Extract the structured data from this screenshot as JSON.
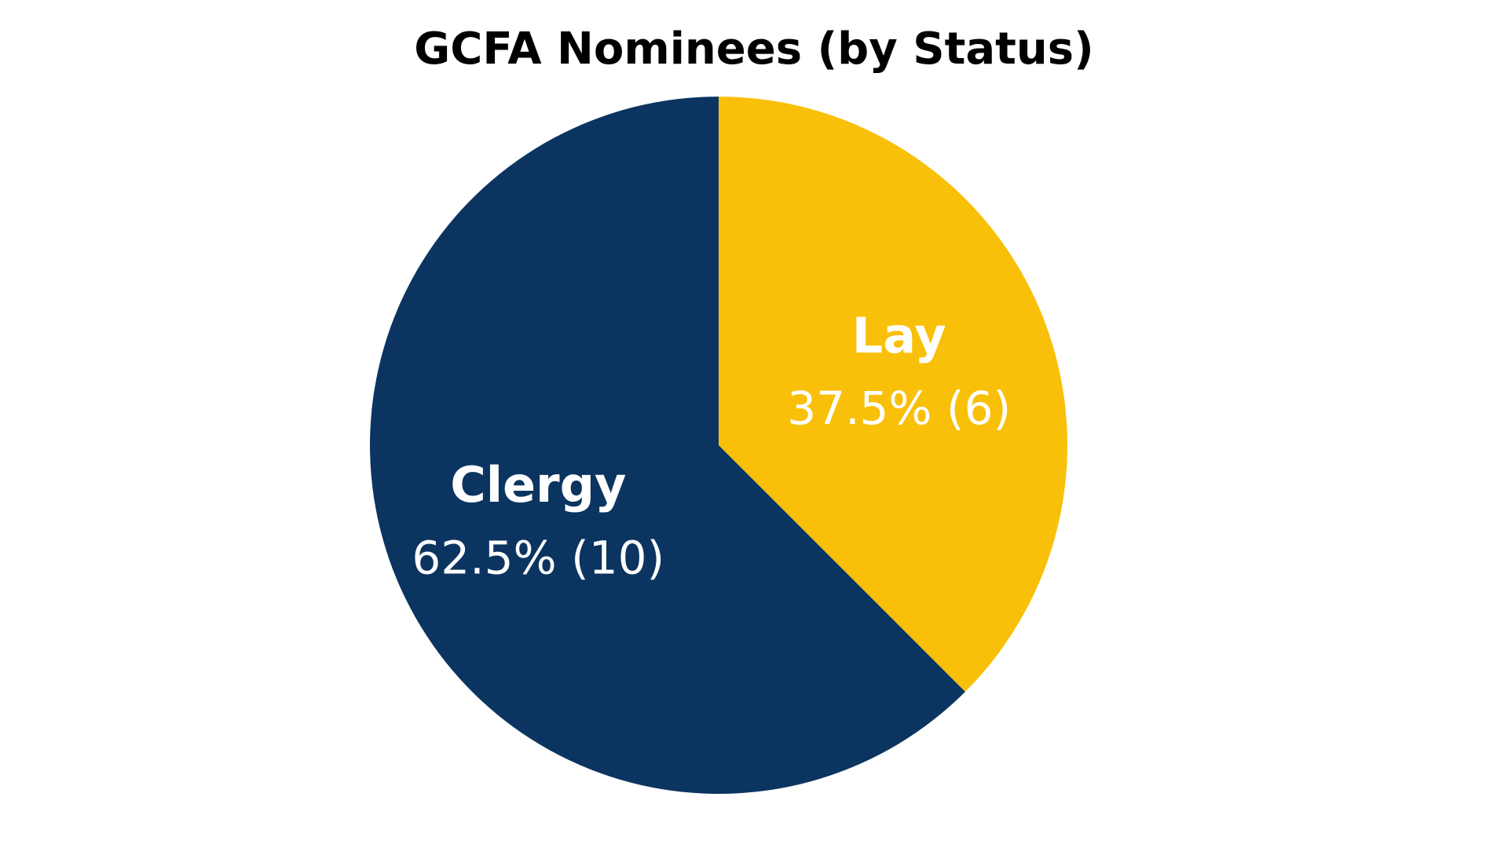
{
  "chart_data": {
    "type": "pie",
    "title": "GCFA Nominees (by Status)",
    "categories": [
      "Lay",
      "Clergy"
    ],
    "values": [
      37.5,
      62.5
    ],
    "value_labels": [
      "37.5% (6)",
      "62.5% (10)"
    ],
    "colors": [
      "#f9c009",
      "#0b3560"
    ]
  }
}
